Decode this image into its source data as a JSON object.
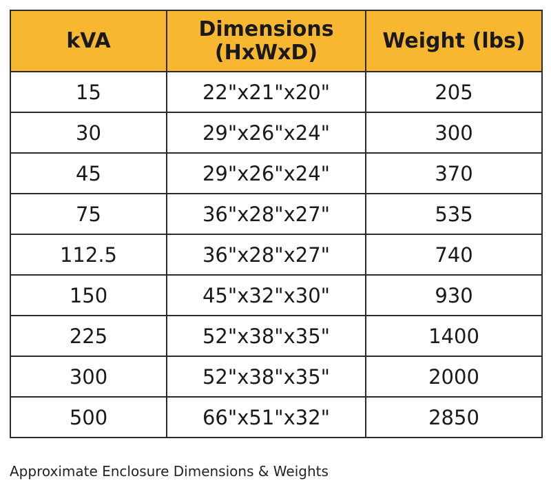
{
  "table": {
    "headers": {
      "kva": "kVA",
      "dimensions_line1": "Dimensions",
      "dimensions_line2": "(HxWxD)",
      "weight": "Weight (lbs)"
    },
    "rows": [
      {
        "kva": "15",
        "dimensions": "22\"x21\"x20\"",
        "weight": "205"
      },
      {
        "kva": "30",
        "dimensions": "29\"x26\"x24\"",
        "weight": "300"
      },
      {
        "kva": "45",
        "dimensions": "29\"x26\"x24\"",
        "weight": "370"
      },
      {
        "kva": "75",
        "dimensions": "36\"x28\"x27\"",
        "weight": "535"
      },
      {
        "kva": "112.5",
        "dimensions": "36\"x28\"x27\"",
        "weight": "740"
      },
      {
        "kva": "150",
        "dimensions": "45\"x32\"x30\"",
        "weight": "930"
      },
      {
        "kva": "225",
        "dimensions": "52\"x38\"x35\"",
        "weight": "1400"
      },
      {
        "kva": "300",
        "dimensions": "52\"x38\"x35\"",
        "weight": "2000"
      },
      {
        "kva": "500",
        "dimensions": "66\"x51\"x32\"",
        "weight": "2850"
      }
    ]
  },
  "caption": "Approximate Enclosure Dimensions & Weights",
  "colors": {
    "header_background": "#f7b731",
    "border": "#2a2a2a",
    "text": "#1a1a1a"
  }
}
